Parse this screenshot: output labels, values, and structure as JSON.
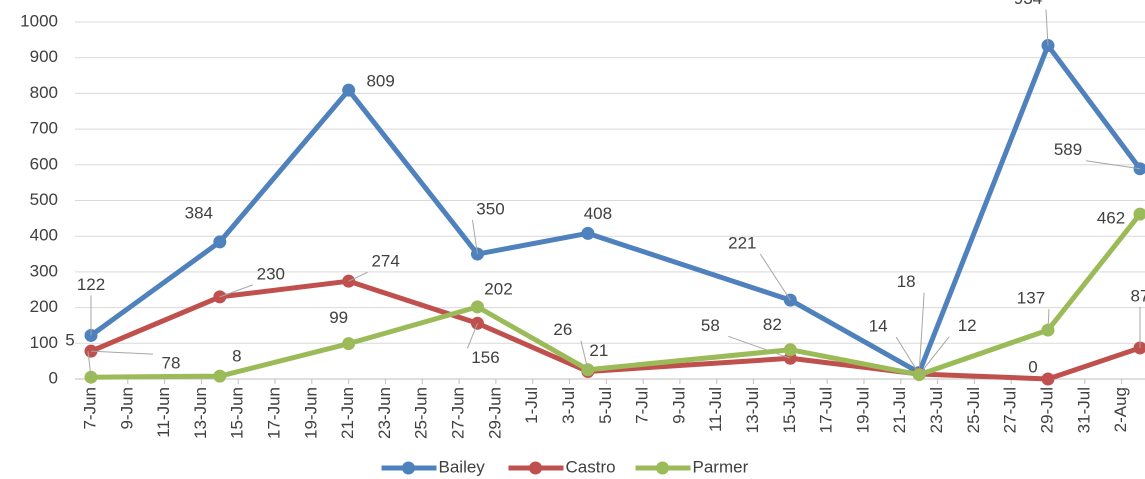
{
  "chart_data": {
    "type": "line",
    "x": [
      "7-Jun",
      "14-Jun",
      "21-Jun",
      "28-Jun",
      "4-Jul",
      "15-Jul",
      "22-Jul",
      "29-Jul",
      "3-Aug"
    ],
    "series": [
      {
        "name": "Bailey",
        "color": "#4f81bd",
        "values": [
          122,
          384,
          809,
          350,
          408,
          221,
          18,
          934,
          589
        ]
      },
      {
        "name": "Castro",
        "color": "#c0504d",
        "values": [
          78,
          230,
          274,
          156,
          21,
          58,
          14,
          0,
          87
        ]
      },
      {
        "name": "Parmer",
        "color": "#9bbb59",
        "values": [
          5,
          8,
          99,
          202,
          26,
          82,
          12,
          137,
          462
        ]
      }
    ],
    "xlim": [
      "6-Jun",
      "3-Aug"
    ],
    "xticks": [
      "7-Jun",
      "9-Jun",
      "11-Jun",
      "13-Jun",
      "15-Jun",
      "17-Jun",
      "19-Jun",
      "21-Jun",
      "23-Jun",
      "25-Jun",
      "27-Jun",
      "29-Jun",
      "1-Jul",
      "3-Jul",
      "5-Jul",
      "7-Jul",
      "9-Jul",
      "11-Jul",
      "13-Jul",
      "15-Jul",
      "17-Jul",
      "19-Jul",
      "21-Jul",
      "23-Jul",
      "25-Jul",
      "27-Jul",
      "29-Jul",
      "31-Jul",
      "2-Aug"
    ],
    "ylim": [
      0,
      1000
    ],
    "yticks": [
      0,
      100,
      200,
      300,
      400,
      500,
      600,
      700,
      800,
      900,
      1000
    ],
    "grid": true,
    "legend": "bottom"
  }
}
